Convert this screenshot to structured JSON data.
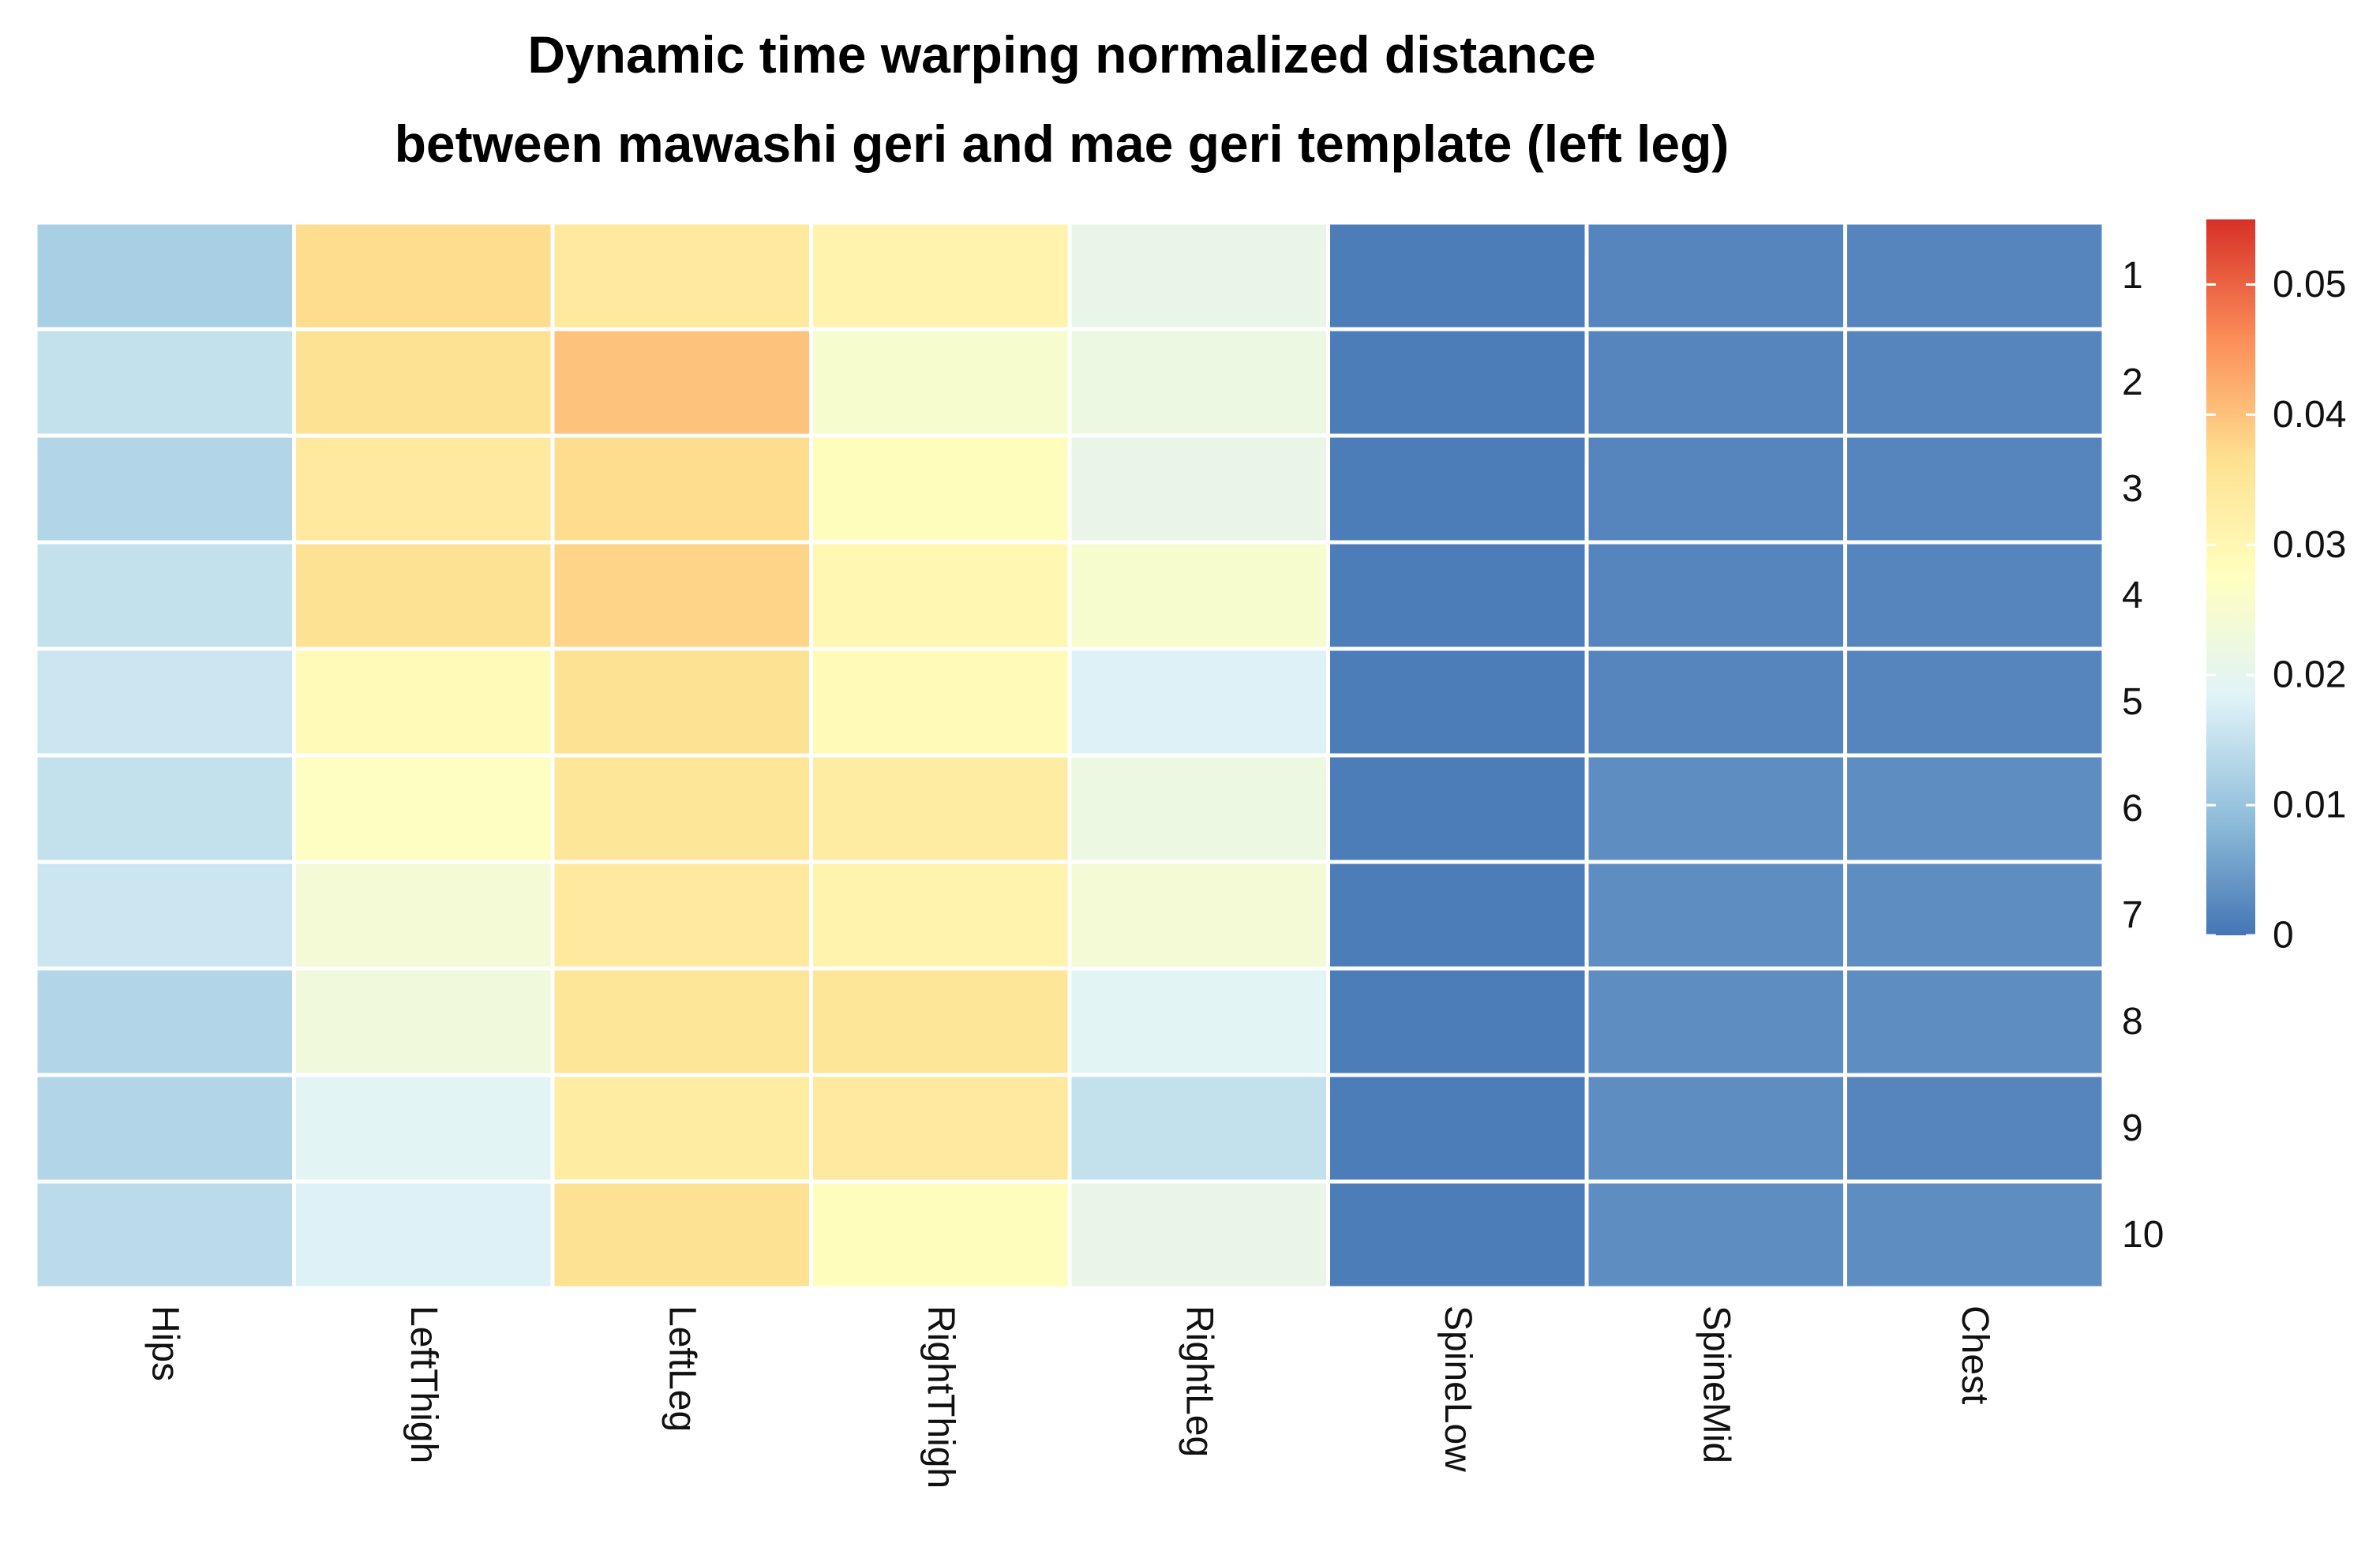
{
  "chart_data": {
    "type": "heatmap",
    "title_lines": [
      "Dynamic time warping normalized distance",
      "between mawashi geri and mae geri template (left leg)"
    ],
    "columns": [
      "Hips",
      "LeftThigh",
      "LeftLeg",
      "RightThigh",
      "RightLeg",
      "SpineLow",
      "SpineMid",
      "Chest"
    ],
    "rows": [
      "1",
      "2",
      "3",
      "4",
      "5",
      "6",
      "7",
      "8",
      "9",
      "10"
    ],
    "values": [
      [
        0.012,
        0.037,
        0.034,
        0.031,
        0.021,
        0.001,
        0.002,
        0.002
      ],
      [
        0.015,
        0.036,
        0.04,
        0.025,
        0.022,
        0.001,
        0.002,
        0.002
      ],
      [
        0.013,
        0.034,
        0.037,
        0.028,
        0.021,
        0.001,
        0.002,
        0.002
      ],
      [
        0.015,
        0.036,
        0.038,
        0.03,
        0.025,
        0.001,
        0.002,
        0.002
      ],
      [
        0.016,
        0.029,
        0.036,
        0.029,
        0.018,
        0.001,
        0.002,
        0.002
      ],
      [
        0.015,
        0.027,
        0.035,
        0.033,
        0.022,
        0.001,
        0.003,
        0.003
      ],
      [
        0.016,
        0.024,
        0.034,
        0.031,
        0.024,
        0.001,
        0.003,
        0.003
      ],
      [
        0.013,
        0.023,
        0.035,
        0.035,
        0.019,
        0.001,
        0.003,
        0.003
      ],
      [
        0.013,
        0.019,
        0.033,
        0.034,
        0.015,
        0.001,
        0.003,
        0.002
      ],
      [
        0.014,
        0.018,
        0.036,
        0.028,
        0.021,
        0.001,
        0.003,
        0.003
      ]
    ],
    "color_range": [
      0,
      0.055
    ],
    "color_stops": [
      "#4575b4",
      "#91bfdb",
      "#e0f3f8",
      "#ffffbf",
      "#fee090",
      "#fc8d59",
      "#d73027"
    ],
    "legend": {
      "ticks": [
        0,
        0.01,
        0.02,
        0.03,
        0.04,
        0.05
      ],
      "tick_labels": [
        "0",
        "0.01",
        "0.02",
        "0.03",
        "0.04",
        "0.05"
      ],
      "placement": "right"
    },
    "row_labels_side": "right",
    "column_labels_side": "bottom-rotated",
    "grid": true
  }
}
